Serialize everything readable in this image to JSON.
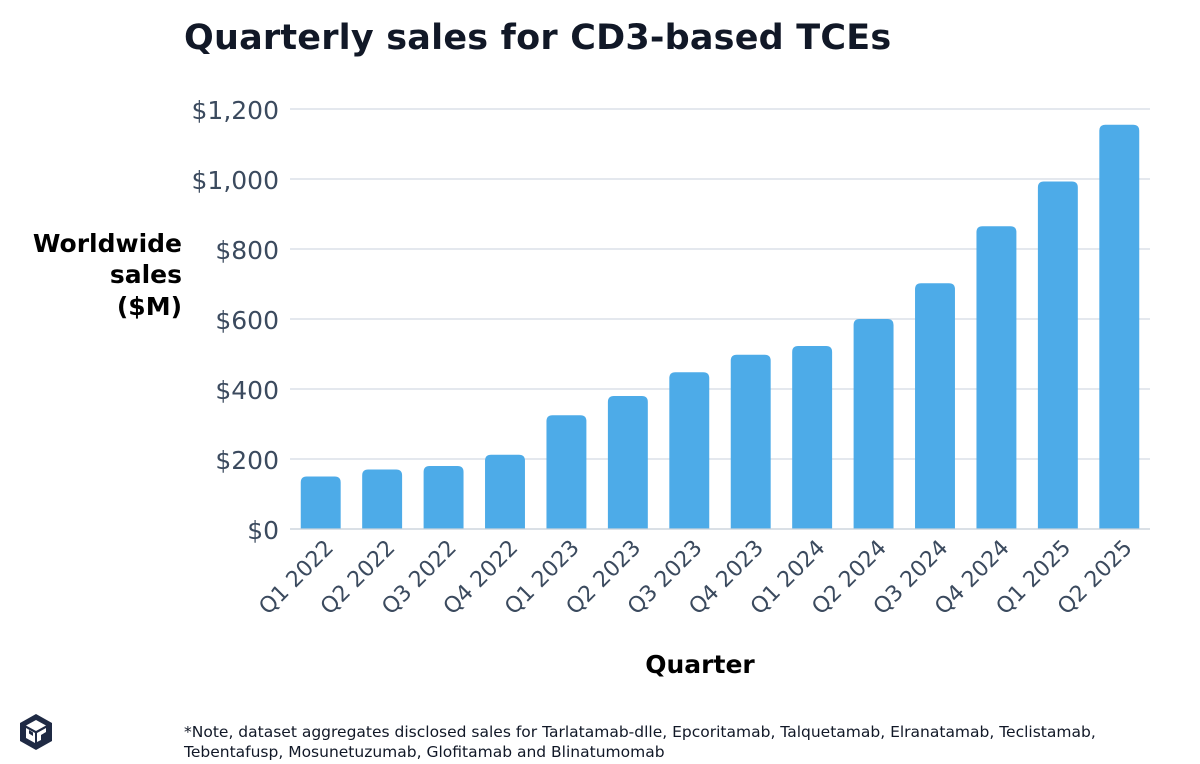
{
  "chart_data": {
    "type": "bar",
    "title": "Quarterly sales for CD3-based TCEs",
    "xlabel": "Quarter",
    "ylabel": [
      "Worldwide",
      "sales",
      "($M)"
    ],
    "categories": [
      "Q1 2022",
      "Q2 2022",
      "Q3 2022",
      "Q4 2022",
      "Q1 2023",
      "Q2 2023",
      "Q3 2023",
      "Q4 2023",
      "Q1 2024",
      "Q2 2024",
      "Q3 2024",
      "Q4 2024",
      "Q1 2025",
      "Q2 2025"
    ],
    "values": [
      150,
      170,
      180,
      212,
      325,
      380,
      448,
      498,
      523,
      600,
      702,
      865,
      993,
      1155
    ],
    "ylim": [
      0,
      1200
    ],
    "yticks": [
      0,
      200,
      400,
      600,
      800,
      1000,
      1200
    ],
    "ytick_labels": [
      "$0",
      "$200",
      "$400",
      "$600",
      "$800",
      "$1,000",
      "$1,200"
    ],
    "grid": true,
    "bar_color": "#4dabe8"
  },
  "footnote": {
    "line1": "*Note, dataset aggregates disclosed sales for Tarlatamab-dlle, Epcoritamab, Talquetamab, Elranatamab, Teclistamab,",
    "line2": "Tebentafusp, Mosunetuzumab, Glofitamab and Blinatumomab"
  },
  "logo": {
    "icon": "cube-logo-icon",
    "color": "#1f2a44"
  }
}
